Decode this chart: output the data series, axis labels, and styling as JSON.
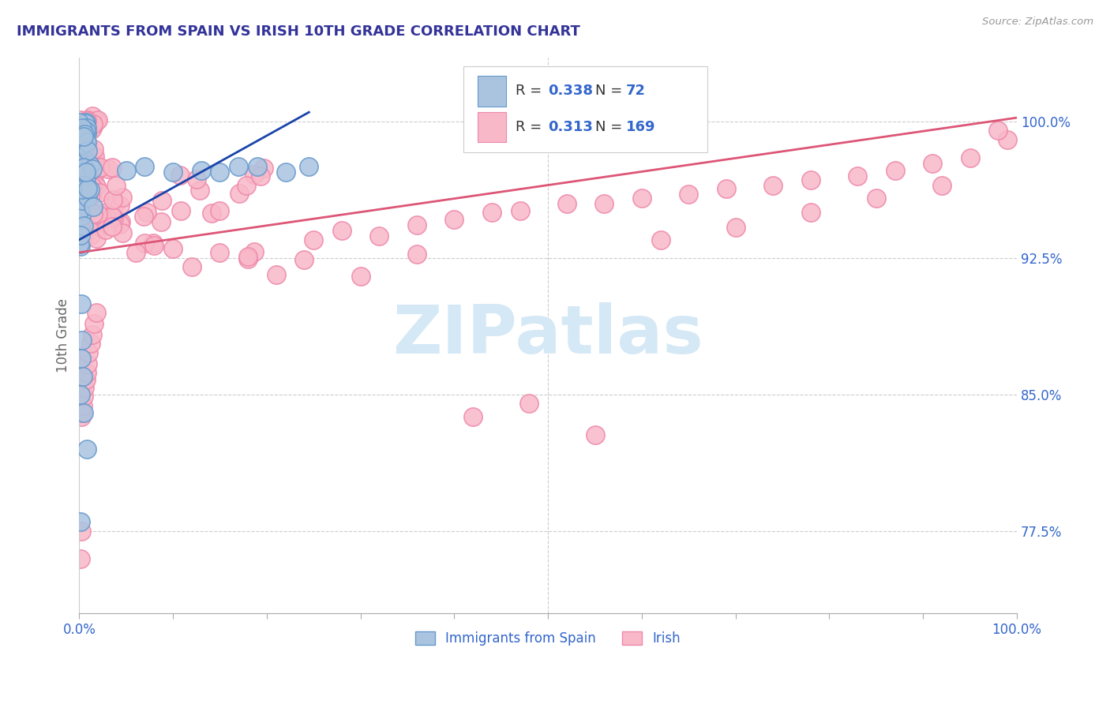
{
  "title": "IMMIGRANTS FROM SPAIN VS IRISH 10TH GRADE CORRELATION CHART",
  "source_text": "Source: ZipAtlas.com",
  "ylabel": "10th Grade",
  "xmin": 0.0,
  "xmax": 1.0,
  "ymin": 0.73,
  "ymax": 1.035,
  "yticks": [
    0.775,
    0.85,
    0.925,
    1.0
  ],
  "ytick_labels": [
    "77.5%",
    "85.0%",
    "92.5%",
    "100.0%"
  ],
  "xticks": [
    0.0,
    0.1,
    0.2,
    0.3,
    0.4,
    0.5,
    0.6,
    0.7,
    0.8,
    0.9,
    1.0
  ],
  "xtick_labels": [
    "0.0%",
    "",
    "",
    "",
    "",
    "",
    "",
    "",
    "",
    "",
    "100.0%"
  ],
  "legend_R1": "0.338",
  "legend_N1": "72",
  "legend_R2": "0.313",
  "legend_N2": "169",
  "label1": "Immigrants from Spain",
  "label2": "Irish",
  "color1_face": "#aac4e0",
  "color1_edge": "#6699cc",
  "color2_face": "#f8b8c8",
  "color2_edge": "#ee88aa",
  "trendline_color1": "#1a44aa",
  "trendline_color2": "#dd5577",
  "background_color": "#ffffff",
  "grid_color": "#cccccc",
  "title_color": "#333399",
  "axis_color": "#3366cc",
  "watermark_color": "#d5e8f5",
  "legend_bg": "#ffffff",
  "legend_border": "#cccccc",
  "spain_trendline_x": [
    0.0,
    0.245
  ],
  "spain_trendline_y": [
    0.935,
    1.005
  ],
  "irish_trendline_x": [
    0.0,
    1.0
  ],
  "irish_trendline_y": [
    0.928,
    1.002
  ]
}
